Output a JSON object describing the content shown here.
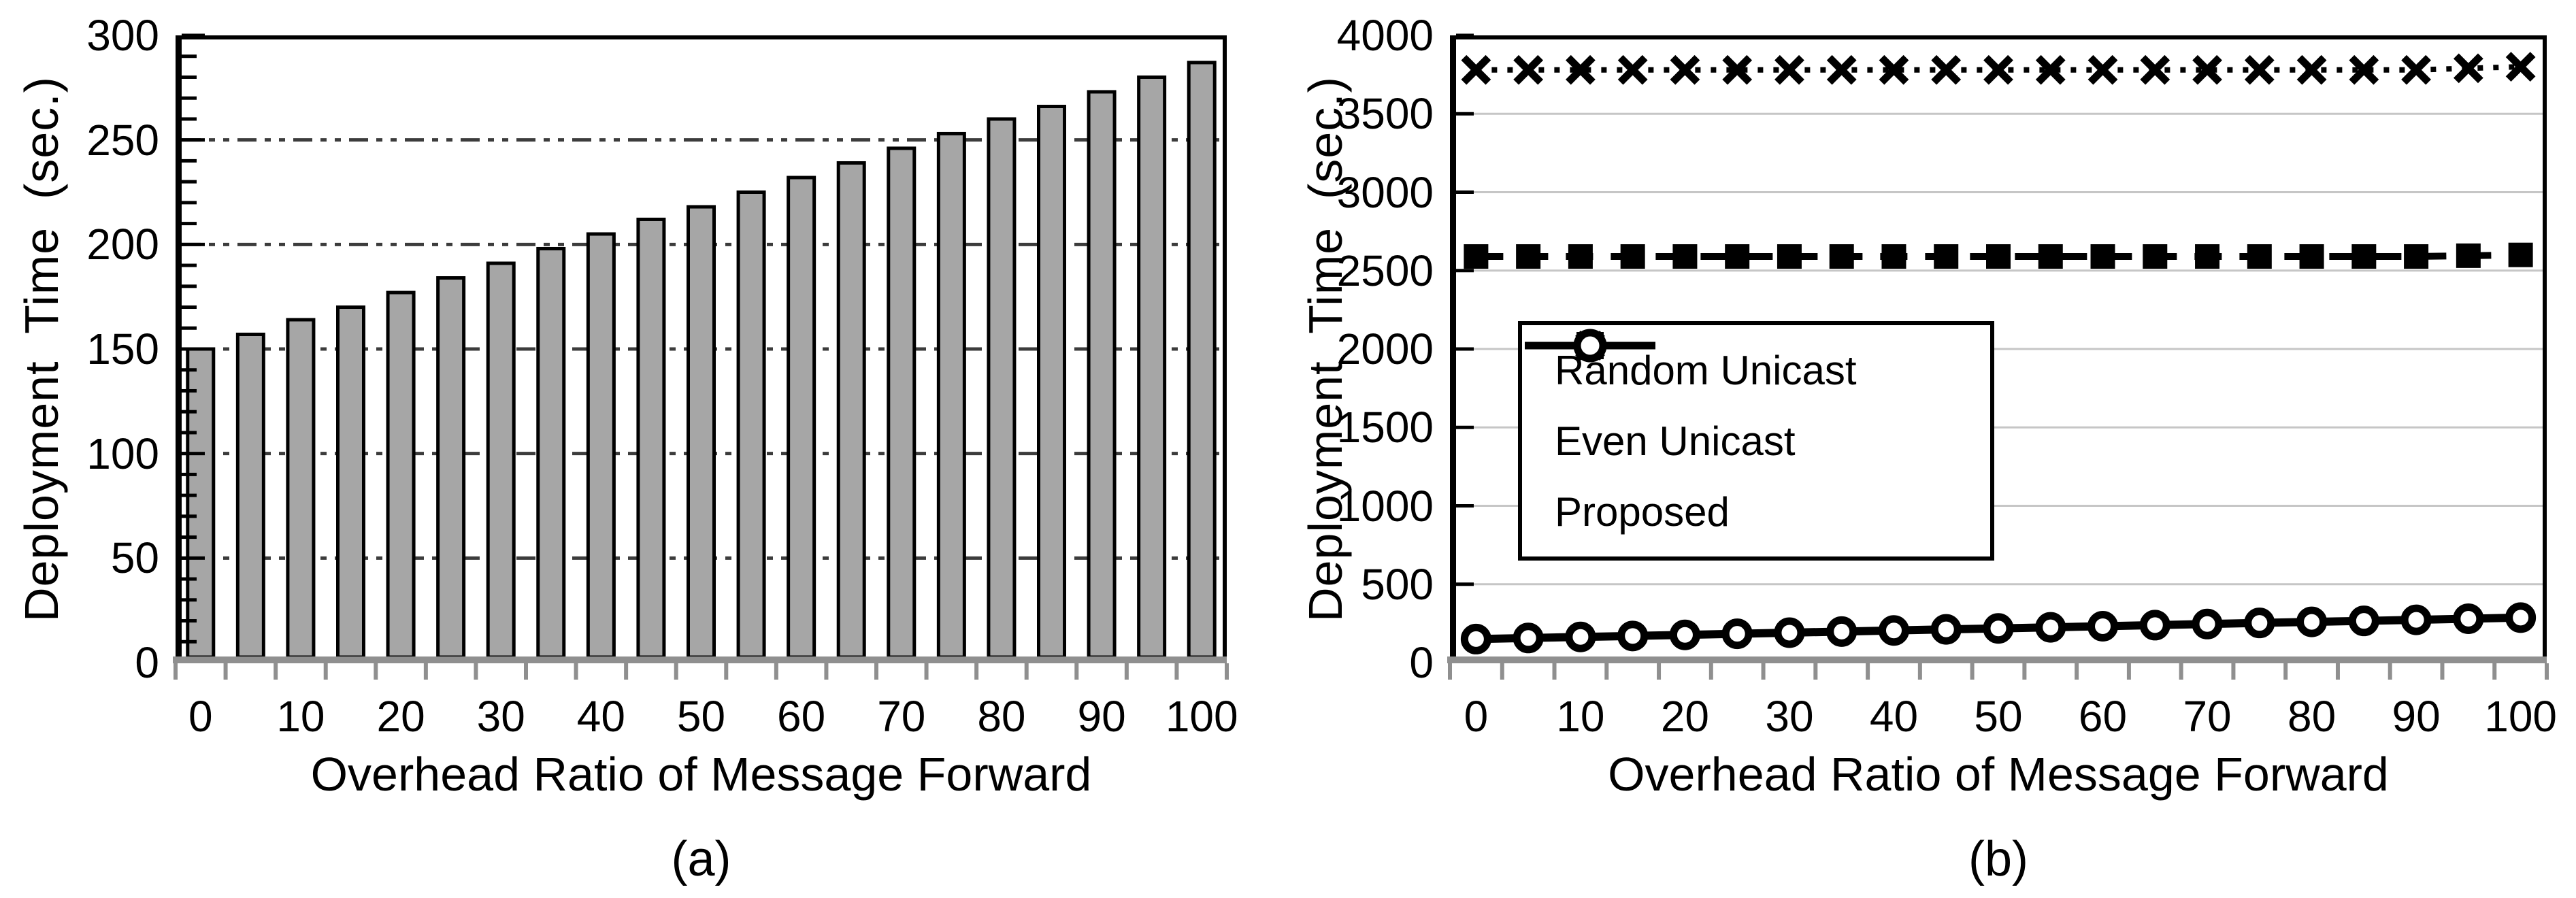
{
  "figure": {
    "background": "#ffffff",
    "text_color": "#000000"
  },
  "chart_data": [
    {
      "type": "bar",
      "caption": "(a)",
      "title": "",
      "xlabel": "Overhead Ratio of Message Forward",
      "ylabel": "Deployment  Time  (sec.)",
      "categories": [
        0,
        5,
        10,
        15,
        20,
        25,
        30,
        35,
        40,
        45,
        50,
        55,
        60,
        65,
        70,
        75,
        80,
        85,
        90,
        95,
        100
      ],
      "values": [
        150,
        157,
        164,
        170,
        177,
        184,
        191,
        198,
        205,
        212,
        218,
        225,
        232,
        239,
        246,
        253,
        260,
        266,
        273,
        280,
        287
      ],
      "ylim": [
        0,
        300
      ],
      "ytick_step": 50,
      "ytick_labels": [
        "0",
        "50",
        "100",
        "150",
        "200",
        "250",
        "300"
      ],
      "yminor_step": 10,
      "xtick_labels": [
        "0",
        "10",
        "20",
        "30",
        "40",
        "50",
        "60",
        "70",
        "80",
        "90",
        "100"
      ],
      "bar_color": "#a6a6a6",
      "bar_border_color": "#000000",
      "grid": "horizontal dash-dot-dot lines at 50,100,150,200,250",
      "grid_color": "#3c3c3c",
      "axis_color_y": "#000000",
      "axis_color_x": "#8f8f8f"
    },
    {
      "type": "line",
      "caption": "(b)",
      "title": "",
      "xlabel": "Overhead Ratio of Message Forward",
      "ylabel": "Deployment  Time  (sec.)",
      "x": [
        0,
        5,
        10,
        15,
        20,
        25,
        30,
        35,
        40,
        45,
        50,
        55,
        60,
        65,
        70,
        75,
        80,
        85,
        90,
        95,
        100
      ],
      "series": [
        {
          "name": "Random Unicast",
          "line": "dotted",
          "marker": "x",
          "color": "#000000",
          "values": [
            3780,
            3780,
            3780,
            3780,
            3780,
            3780,
            3780,
            3780,
            3780,
            3780,
            3780,
            3780,
            3780,
            3780,
            3780,
            3780,
            3780,
            3780,
            3780,
            3790,
            3800
          ]
        },
        {
          "name": "Even Unicast",
          "line": "dashed",
          "marker": "filled-square",
          "color": "#000000",
          "values": [
            2590,
            2590,
            2590,
            2590,
            2590,
            2590,
            2590,
            2590,
            2590,
            2590,
            2590,
            2590,
            2590,
            2590,
            2590,
            2590,
            2590,
            2590,
            2590,
            2595,
            2600
          ]
        },
        {
          "name": "Proposed",
          "line": "solid",
          "marker": "open-circle",
          "color": "#000000",
          "values": [
            150,
            157,
            164,
            170,
            177,
            184,
            191,
            198,
            205,
            212,
            218,
            225,
            232,
            239,
            246,
            253,
            260,
            266,
            273,
            280,
            287
          ]
        }
      ],
      "ylim": [
        0,
        4000
      ],
      "ytick_step": 500,
      "ytick_labels": [
        "0",
        "500",
        "1000",
        "1500",
        "2000",
        "2500",
        "3000",
        "3500",
        "4000"
      ],
      "xtick_labels": [
        "0",
        "10",
        "20",
        "30",
        "40",
        "50",
        "60",
        "70",
        "80",
        "90",
        "100"
      ],
      "grid": "horizontal solid light-gray lines at 500..3500",
      "grid_color": "#c6c6c6",
      "axis_color_y": "#000000",
      "axis_color_x": "#8f8f8f",
      "legend_position": "middle-left"
    }
  ]
}
